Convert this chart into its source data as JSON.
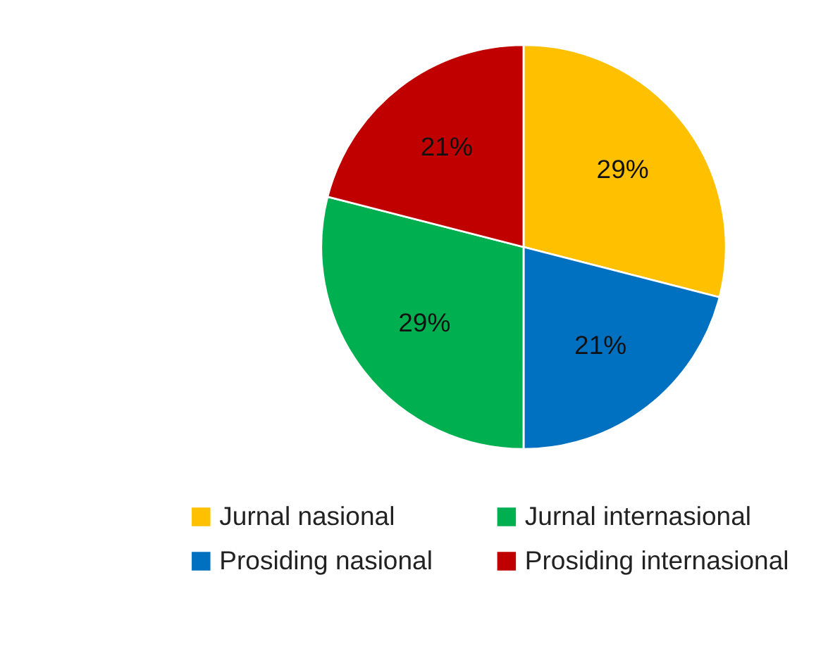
{
  "chart_data": {
    "type": "pie",
    "categories": [
      "Jurnal nasional",
      "Prosiding nasional",
      "Jurnal internasional",
      "Prosiding internasional"
    ],
    "values": [
      29,
      21,
      29,
      21
    ],
    "colors": [
      "#ffc000",
      "#0070c0",
      "#00b050",
      "#c00000"
    ],
    "value_labels": [
      "29%",
      "21%",
      "29%",
      "21%"
    ],
    "legend": "bottom"
  }
}
